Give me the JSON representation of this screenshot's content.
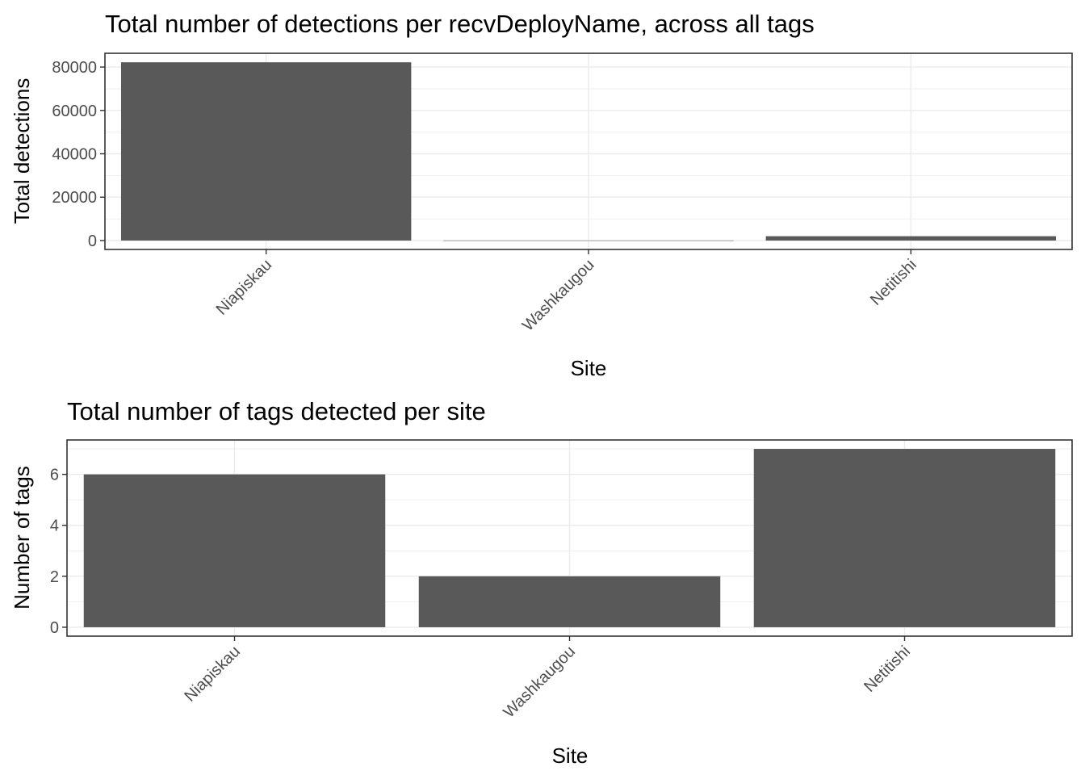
{
  "chart_data": [
    {
      "type": "bar",
      "title": "Total number of detections per recvDeployName, across all tags",
      "xlabel": "Site",
      "ylabel": "Total detections",
      "categories": [
        "Niapiskau",
        "Washkaugou",
        "Netitishi"
      ],
      "values": [
        82200,
        40,
        2000
      ],
      "ylim": [
        -4110,
        86350
      ],
      "yticks": [
        0,
        20000,
        40000,
        60000,
        80000
      ],
      "ytick_labels": [
        "0",
        "20000",
        "40000",
        "60000",
        "80000"
      ],
      "grid": true,
      "bar_color": "#595959"
    },
    {
      "type": "bar",
      "title": "Total number of tags detected per site",
      "xlabel": "Site",
      "ylabel": "Number of tags",
      "categories": [
        "Niapiskau",
        "Washkaugou",
        "Netitishi"
      ],
      "values": [
        6,
        2,
        7
      ],
      "ylim": [
        -0.35,
        7.35
      ],
      "yticks": [
        0,
        2,
        4,
        6
      ],
      "ytick_labels": [
        "0",
        "2",
        "4",
        "6"
      ],
      "grid": true,
      "bar_color": "#595959"
    }
  ]
}
